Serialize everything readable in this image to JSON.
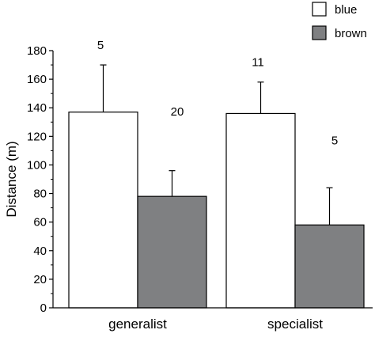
{
  "chart_data": {
    "type": "bar",
    "title": "",
    "xlabel": "",
    "ylabel": "Distance (m)",
    "ylim": [
      0,
      180
    ],
    "y_ticks": [
      0,
      20,
      40,
      60,
      80,
      100,
      120,
      140,
      160,
      180
    ],
    "categories": [
      "generalist",
      "specialist"
    ],
    "series": [
      {
        "name": "blue",
        "color": "#ffffff",
        "values": [
          137,
          136
        ],
        "error_upper": [
          170,
          158
        ],
        "sample_sizes": [
          "5",
          "11"
        ]
      },
      {
        "name": "brown",
        "color": "#7f8082",
        "values": [
          78,
          58
        ],
        "error_upper": [
          96,
          84
        ],
        "sample_sizes": [
          "20",
          "5"
        ]
      }
    ],
    "legend": {
      "position": "top-right"
    },
    "grid": false,
    "error_bars": "upper only"
  }
}
